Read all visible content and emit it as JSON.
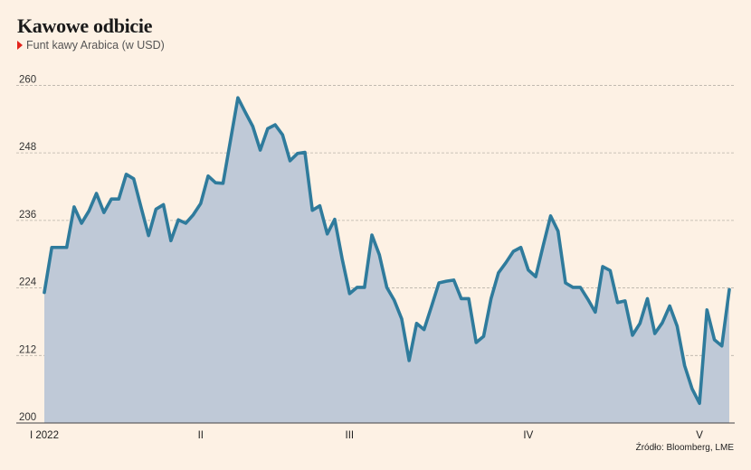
{
  "chart_data": {
    "type": "area",
    "title": "Kawowe odbicie",
    "subtitle": "Funt kawy Arabica (w USD)",
    "source": "Źródło: Bloomberg, LME",
    "colors": {
      "line": "#2f7b9c",
      "fill": "#bfc9d7",
      "background": "#fdf1e4",
      "marker": "#e3231b"
    },
    "ylim": [
      200,
      262
    ],
    "y_ticks": [
      "260",
      "248",
      "236",
      "224",
      "212",
      "200"
    ],
    "y_tick_values": [
      260,
      248,
      236,
      224,
      212,
      200
    ],
    "x_tick_labels": [
      "I 2022",
      "II",
      "III",
      "IV",
      "V"
    ],
    "x_tick_index": [
      0,
      21,
      41,
      65,
      88
    ],
    "grid": "horizontal-dashed",
    "values": [
      223.2,
      231.2,
      231.2,
      231.2,
      238.4,
      235.5,
      237.7,
      240.8,
      237.4,
      239.8,
      239.8,
      244.2,
      243.4,
      238.3,
      233.3,
      238.0,
      238.8,
      232.4,
      236.1,
      235.5,
      237.0,
      239.0,
      243.9,
      242.7,
      242.6,
      250.2,
      257.8,
      255.2,
      252.7,
      248.5,
      252.3,
      253.0,
      251.2,
      246.6,
      247.9,
      248.1,
      237.8,
      238.6,
      233.6,
      236.2,
      229.2,
      223.0,
      224.1,
      224.1,
      233.4,
      229.9,
      224.1,
      221.8,
      218.5,
      211.1,
      217.7,
      216.6,
      220.7,
      224.9,
      225.2,
      225.4,
      222.1,
      222.1,
      214.3,
      215.4,
      222.1,
      226.7,
      228.5,
      230.5,
      231.2,
      227.2,
      226.0,
      231.5,
      236.8,
      234.1,
      224.9,
      224.1,
      224.1,
      222.0,
      219.7,
      227.8,
      227.1,
      221.4,
      221.7,
      215.6,
      217.7,
      222.1,
      215.9,
      217.8,
      220.8,
      217.2,
      210.2,
      206.1,
      203.5,
      220.1,
      214.8,
      213.7,
      223.7
    ]
  }
}
